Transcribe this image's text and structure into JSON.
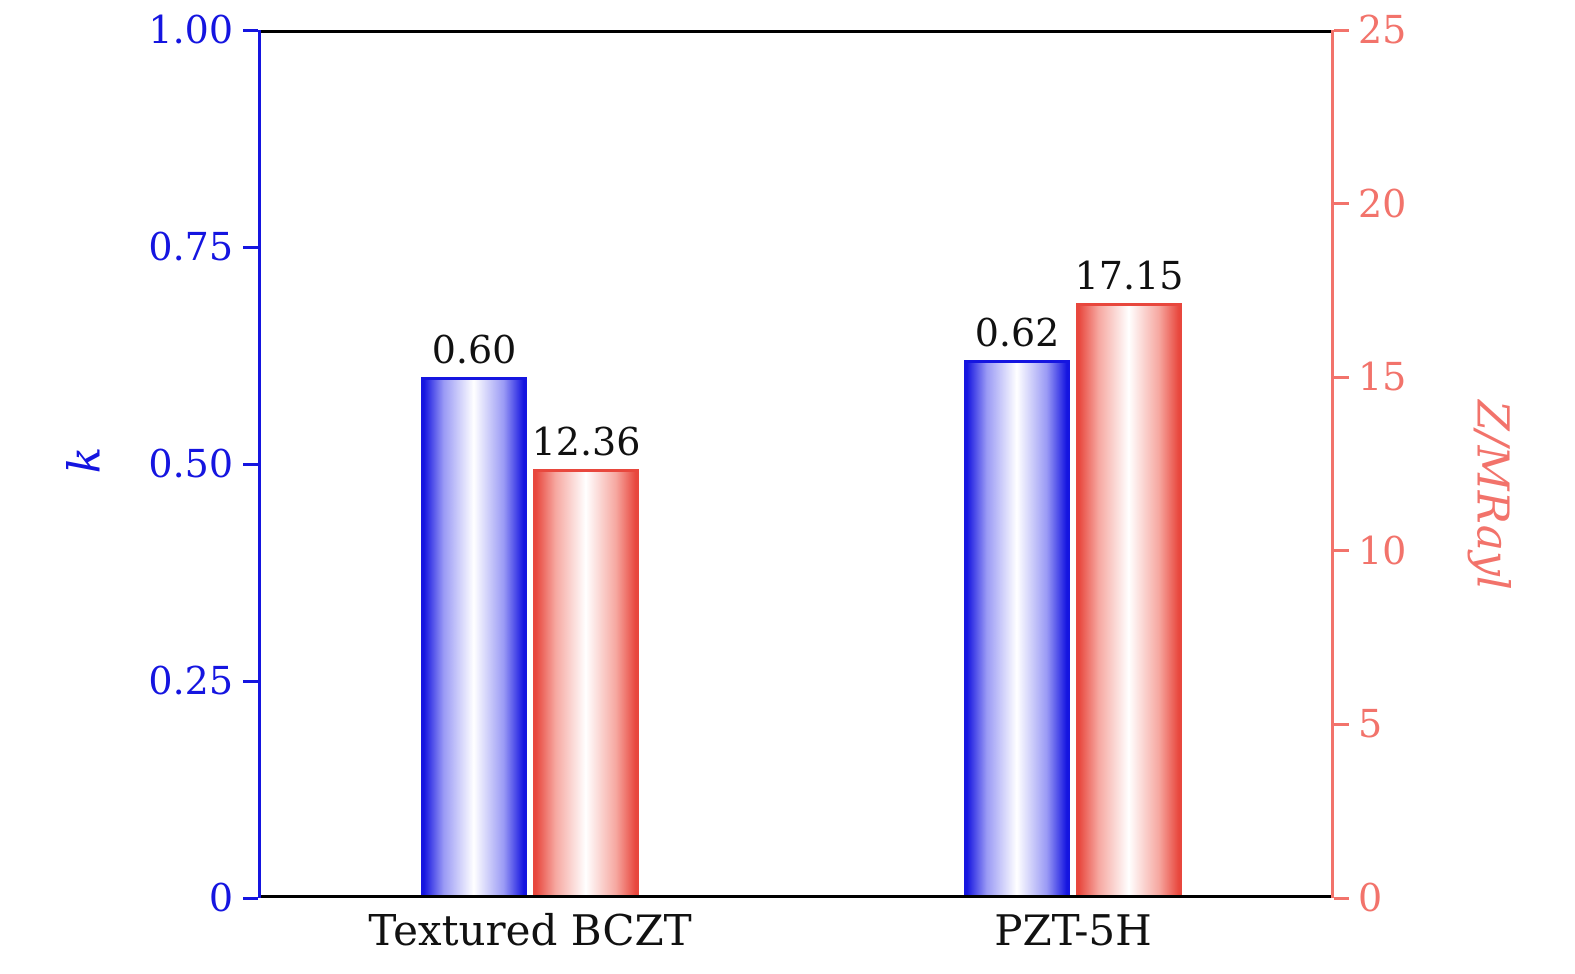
{
  "chart_data": {
    "type": "bar",
    "title": "",
    "categories": [
      "Textured BCZT",
      "PZT-5H"
    ],
    "series": [
      {
        "name": "k",
        "axis": "left",
        "values": [
          0.6,
          0.62
        ],
        "labels": [
          "0.60",
          "0.62"
        ],
        "edge_color": "#1515e0",
        "mid_color": "#9a9af5"
      },
      {
        "name": "Z/MRayl",
        "axis": "right",
        "values": [
          12.36,
          17.15
        ],
        "labels": [
          "12.36",
          "17.15"
        ],
        "edge_color": "#e8473d",
        "mid_color": "#f6a8a1"
      }
    ],
    "left_axis": {
      "label": "k",
      "color": "#1515e0",
      "min": 0,
      "max": 1.0,
      "ticks": [
        "1.00",
        "0.75",
        "0.50",
        "0.25",
        "0"
      ],
      "tick_values": [
        1.0,
        0.75,
        0.5,
        0.25,
        0
      ]
    },
    "right_axis": {
      "label": "Z/MRayl",
      "color": "#f2736b",
      "min": 0,
      "max": 25,
      "ticks": [
        "25",
        "20",
        "15",
        "10",
        "5",
        "0"
      ],
      "tick_values": [
        25,
        20,
        15,
        10,
        5,
        0
      ]
    },
    "top_spine_color": "#000000",
    "bottom_spine_color": "#000000",
    "grid": false,
    "legend": "none",
    "background": "#ffffff",
    "bar_label_color": "#111111"
  }
}
